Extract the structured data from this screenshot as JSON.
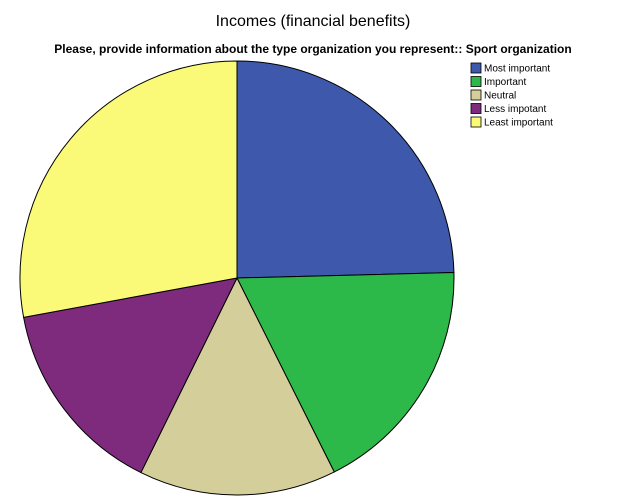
{
  "chart_data": {
    "type": "pie",
    "title": "Incomes (financial benefits)",
    "subtitle": "Please, provide information about the type organization you represent:: Sport organization",
    "categories": [
      "Most important",
      "Important",
      "Neutral",
      "Less impotant",
      "Least important"
    ],
    "values": [
      24.6,
      18.0,
      14.7,
      14.8,
      27.9
    ],
    "colors": [
      "#3e58ac",
      "#2db84a",
      "#d4cf9a",
      "#7e2a7d",
      "#fafa78"
    ],
    "legend": "top-right"
  }
}
